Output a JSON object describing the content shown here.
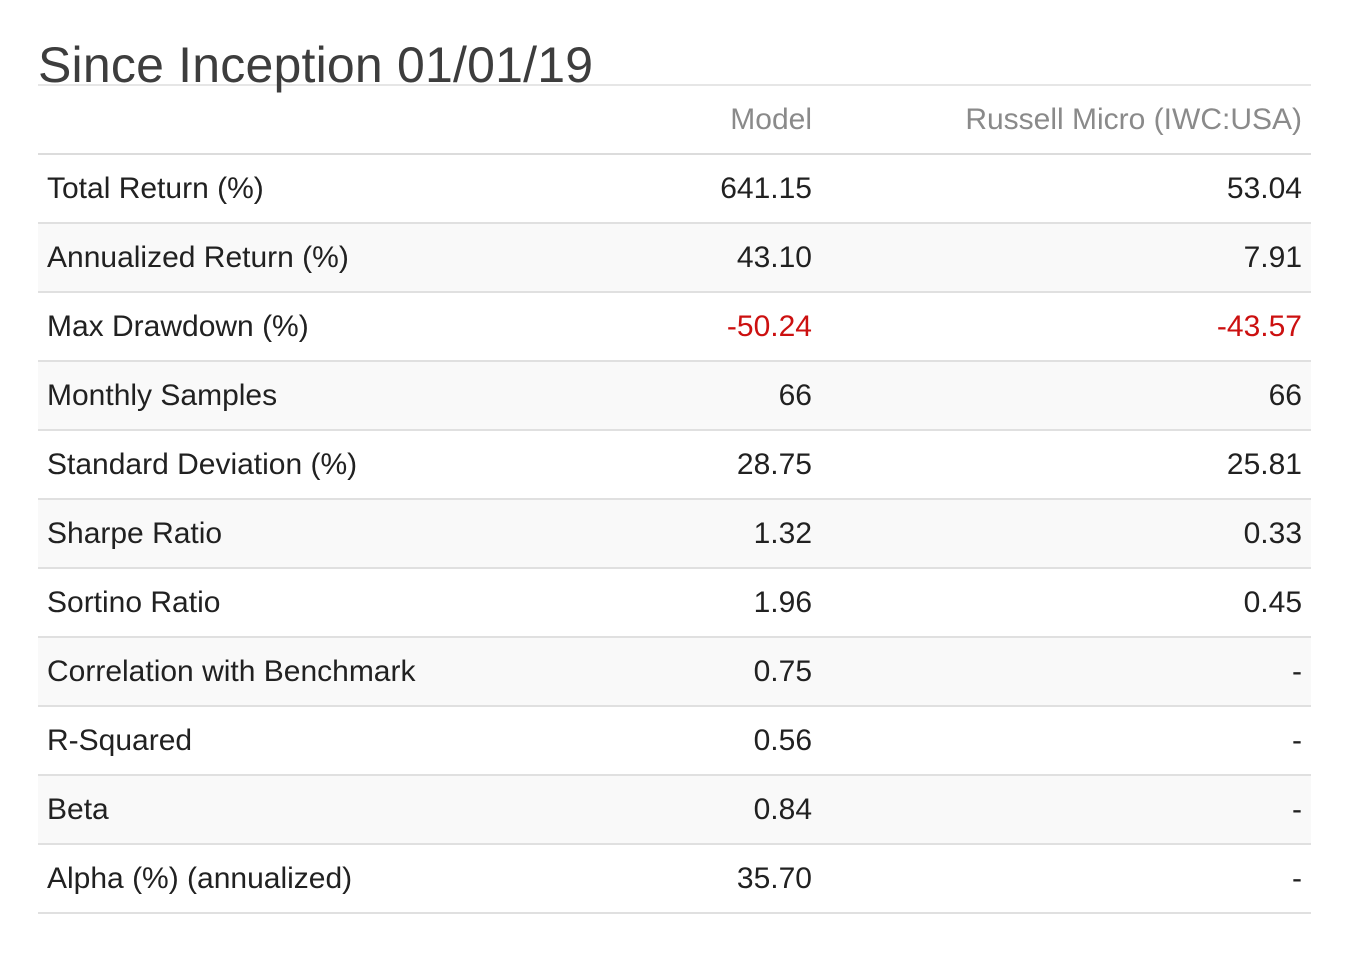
{
  "title": "Since Inception 01/01/19",
  "table": {
    "headers": {
      "label": "",
      "model": "Model",
      "benchmark": "Russell Micro (IWC:USA)"
    },
    "rows": [
      {
        "metric": "Total Return (%)",
        "model": "641.15",
        "benchmark": "53.04"
      },
      {
        "metric": "Annualized Return (%)",
        "model": "43.10",
        "benchmark": "7.91"
      },
      {
        "metric": "Max Drawdown (%)",
        "model": "-50.24",
        "benchmark": "-43.57"
      },
      {
        "metric": "Monthly Samples",
        "model": "66",
        "benchmark": "66"
      },
      {
        "metric": "Standard Deviation (%)",
        "model": "28.75",
        "benchmark": "25.81"
      },
      {
        "metric": "Sharpe Ratio",
        "model": "1.32",
        "benchmark": "0.33"
      },
      {
        "metric": "Sortino Ratio",
        "model": "1.96",
        "benchmark": "0.45"
      },
      {
        "metric": "Correlation with Benchmark",
        "model": "0.75",
        "benchmark": "-"
      },
      {
        "metric": "R-Squared",
        "model": "0.56",
        "benchmark": "-"
      },
      {
        "metric": "Beta",
        "model": "0.84",
        "benchmark": "-"
      },
      {
        "metric": "Alpha (%) (annualized)",
        "model": "35.70",
        "benchmark": "-"
      }
    ]
  },
  "colors": {
    "negative": "#cc1010",
    "header_text": "#8a8a8a",
    "row_alt_background": "#f9f9f9"
  }
}
